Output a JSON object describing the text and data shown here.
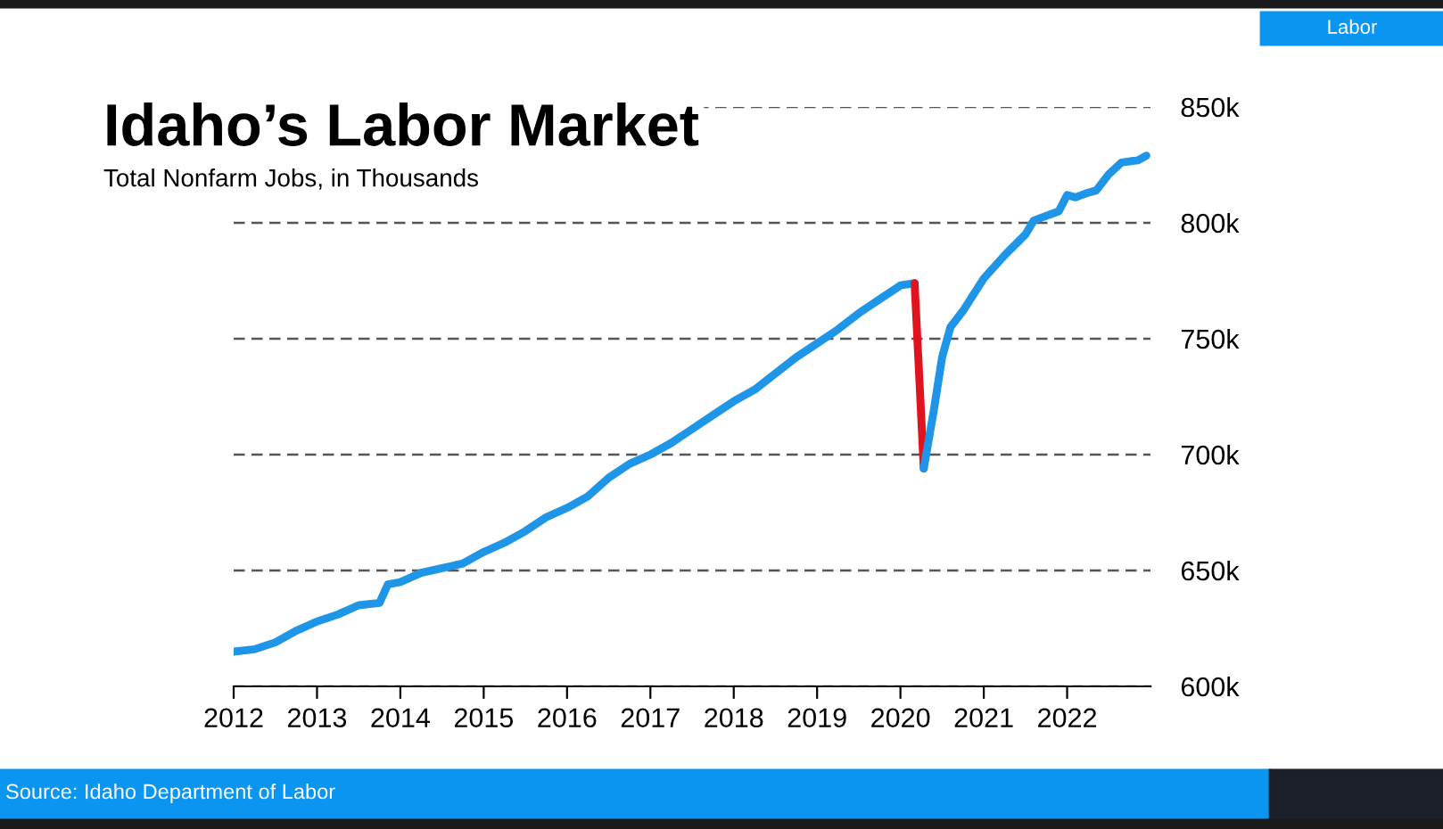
{
  "chart_data": {
    "type": "line",
    "title": "Idaho’s Labor Market",
    "subtitle": "Total Nonfarm Jobs, in Thousands",
    "annotations": [
      "Labor",
      "Source: Idaho Department of Labor"
    ],
    "series": [
      {
        "color": "#1f95e8",
        "x": [
          2012.0,
          2012.25,
          2012.5,
          2012.75,
          2013.0,
          2013.25,
          2013.5,
          2013.75,
          2013.85,
          2014.0,
          2014.25,
          2014.5,
          2014.75,
          2015.0,
          2015.25,
          2015.5,
          2015.75,
          2016.0,
          2016.25,
          2016.5,
          2016.75,
          2017.0,
          2017.25,
          2017.5,
          2017.75,
          2018.0,
          2018.25,
          2018.5,
          2018.75,
          2019.0,
          2019.25,
          2019.5,
          2019.75,
          2020.0,
          2020.17
        ],
        "values": [
          615,
          616,
          619,
          624,
          628,
          631,
          635,
          636,
          644,
          645,
          649,
          651,
          653,
          658,
          662,
          667,
          673,
          677,
          682,
          690,
          696,
          700,
          705,
          711,
          717,
          723,
          728,
          735,
          742,
          748,
          754,
          761,
          767,
          773,
          774
        ]
      },
      {
        "color": "#e0141e",
        "x": [
          2020.17,
          2020.28
        ],
        "values": [
          774,
          694
        ]
      },
      {
        "color": "#1f95e8",
        "x": [
          2020.28,
          2020.4,
          2020.5,
          2020.6,
          2020.75,
          2021.0,
          2021.25,
          2021.5,
          2021.6,
          2021.75,
          2021.9,
          2022.0,
          2022.1,
          2022.25,
          2022.35,
          2022.5,
          2022.65,
          2022.85,
          2022.95
        ],
        "values": [
          694,
          719,
          742,
          755,
          762,
          776,
          786,
          795,
          801,
          803,
          805,
          812,
          811,
          813,
          814,
          821,
          826,
          827,
          829
        ]
      }
    ],
    "xlim": [
      2012,
      2023
    ],
    "xticks": [
      2012,
      2013,
      2014,
      2015,
      2016,
      2017,
      2018,
      2019,
      2020,
      2021,
      2022
    ],
    "ylim": [
      600,
      850
    ],
    "yticks": [
      {
        "value": 600,
        "label": "600k"
      },
      {
        "value": 650,
        "label": "650k"
      },
      {
        "value": 700,
        "label": "700k"
      },
      {
        "value": 750,
        "label": "750k"
      },
      {
        "value": 800,
        "label": "800k"
      },
      {
        "value": 850,
        "label": "850k"
      }
    ],
    "grid": "y",
    "line_style": "solid"
  }
}
